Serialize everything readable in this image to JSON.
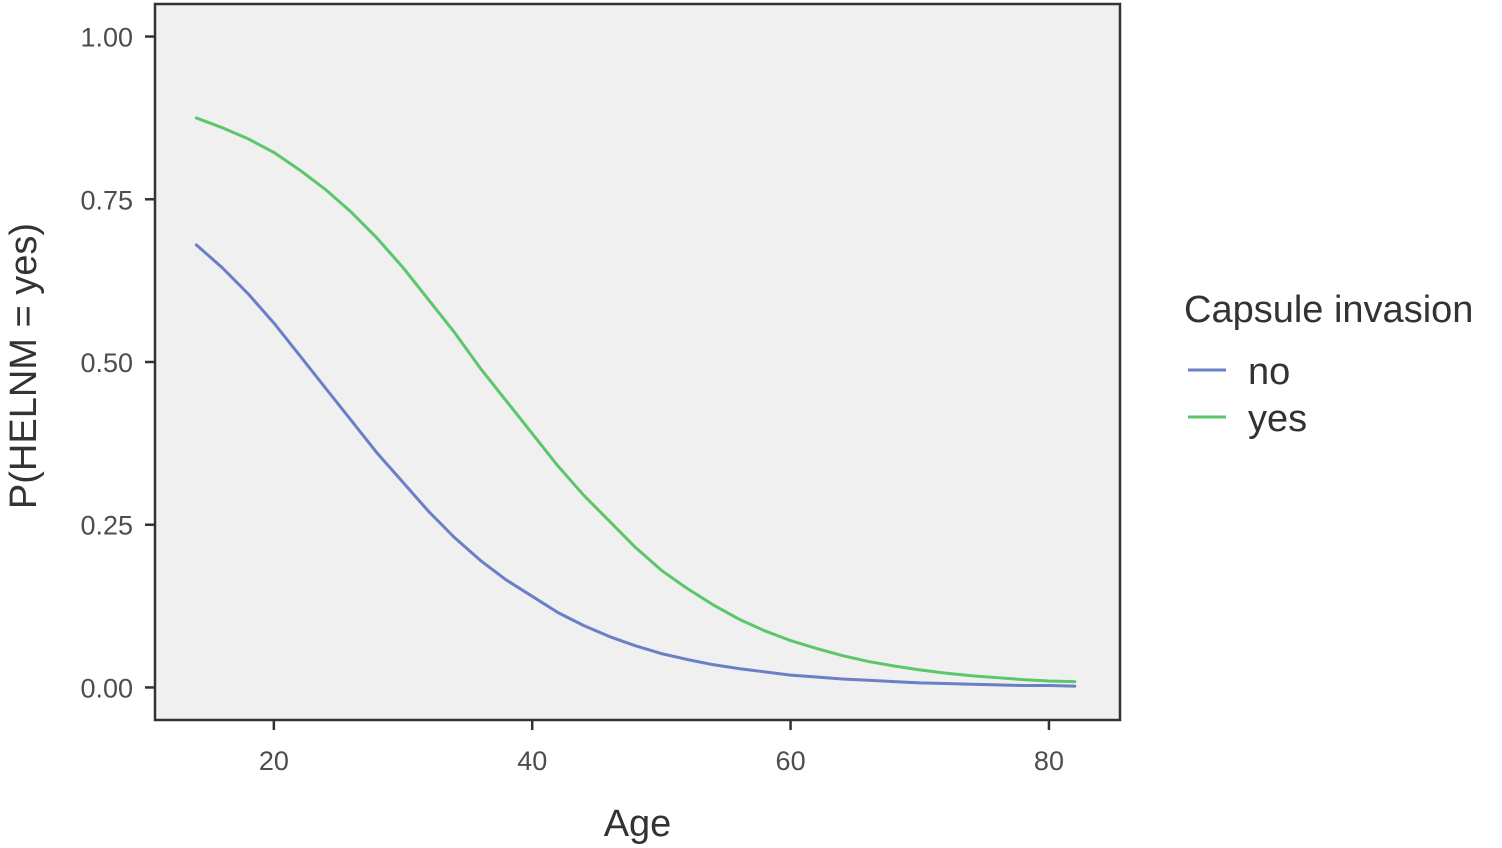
{
  "chart_data": {
    "type": "line",
    "title": "",
    "xlabel": "Age",
    "ylabel": "P(HELNM = yes)",
    "xlim": [
      10.8,
      85.5
    ],
    "ylim": [
      -0.05,
      1.05
    ],
    "xticks": [
      20,
      40,
      60,
      80
    ],
    "xtick_labels": [
      "20",
      "40",
      "60",
      "80"
    ],
    "yticks": [
      0,
      0.25,
      0.5,
      0.75,
      1.0
    ],
    "ytick_labels": [
      "0.00",
      "0.25",
      "0.50",
      "0.75",
      "1.00"
    ],
    "grid": false,
    "legend": {
      "title": "Capsule invasion",
      "position": "right"
    },
    "series": [
      {
        "name": "no",
        "color": "#6b7fc7",
        "x": [
          14,
          16,
          18,
          20,
          22,
          24,
          26,
          28,
          30,
          32,
          34,
          36,
          38,
          40,
          42,
          44,
          46,
          48,
          50,
          52,
          54,
          56,
          58,
          60,
          62,
          64,
          66,
          68,
          70,
          72,
          74,
          76,
          78,
          80,
          82
        ],
        "y": [
          0.68,
          0.645,
          0.605,
          0.56,
          0.51,
          0.46,
          0.41,
          0.36,
          0.315,
          0.27,
          0.23,
          0.195,
          0.165,
          0.14,
          0.115,
          0.095,
          0.078,
          0.064,
          0.052,
          0.043,
          0.035,
          0.029,
          0.024,
          0.019,
          0.016,
          0.013,
          0.011,
          0.009,
          0.007,
          0.006,
          0.005,
          0.004,
          0.003,
          0.003,
          0.002
        ]
      },
      {
        "name": "yes",
        "color": "#5cc66a",
        "x": [
          14,
          16,
          18,
          20,
          22,
          24,
          26,
          28,
          30,
          32,
          34,
          36,
          38,
          40,
          42,
          44,
          46,
          48,
          50,
          52,
          54,
          56,
          58,
          60,
          62,
          64,
          66,
          68,
          70,
          72,
          74,
          76,
          78,
          80,
          82
        ],
        "y": [
          0.875,
          0.86,
          0.843,
          0.822,
          0.795,
          0.765,
          0.73,
          0.69,
          0.645,
          0.595,
          0.545,
          0.49,
          0.44,
          0.39,
          0.34,
          0.295,
          0.255,
          0.215,
          0.18,
          0.152,
          0.127,
          0.105,
          0.087,
          0.072,
          0.06,
          0.049,
          0.04,
          0.033,
          0.027,
          0.022,
          0.018,
          0.015,
          0.012,
          0.01,
          0.009
        ]
      }
    ]
  }
}
